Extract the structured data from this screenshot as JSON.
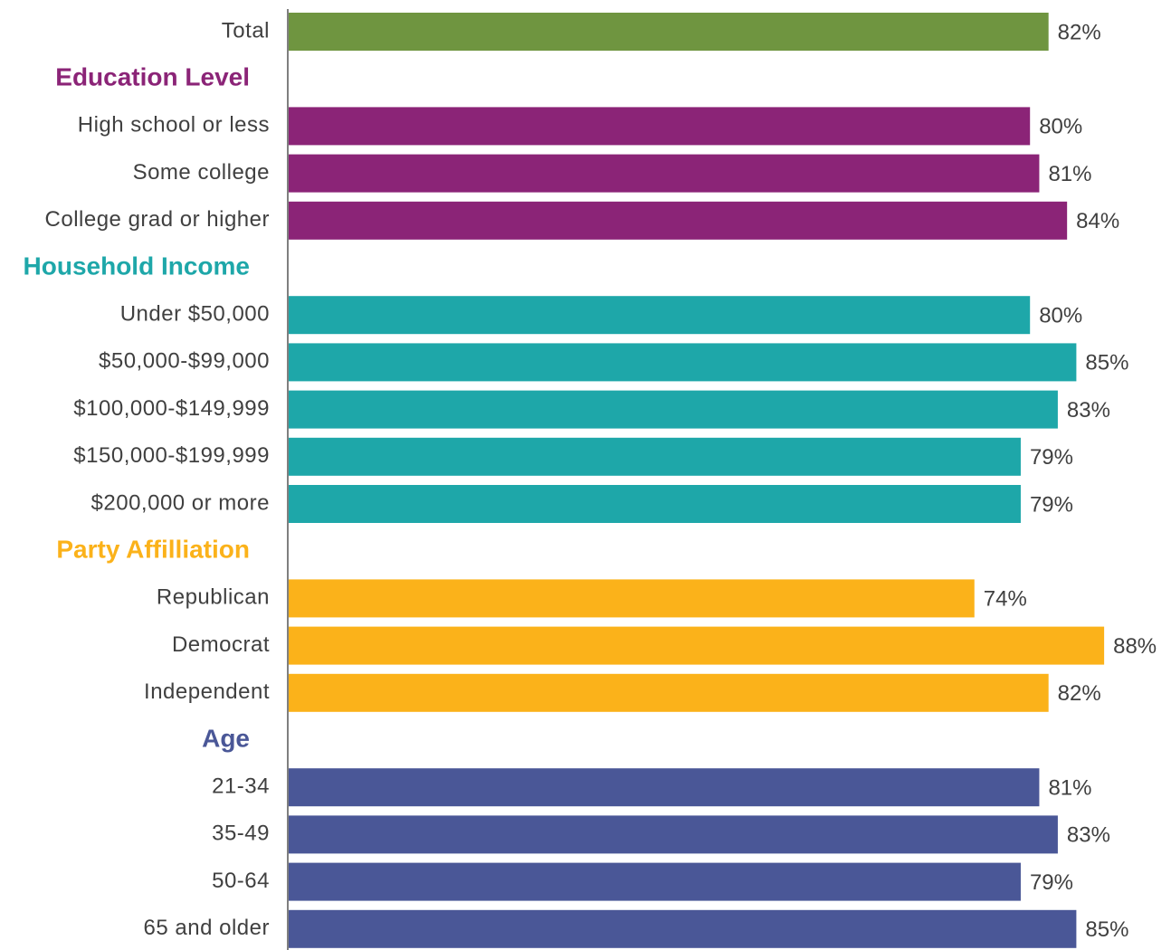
{
  "chart_data": {
    "type": "bar",
    "orientation": "horizontal",
    "total": {
      "label": "Total",
      "value": 82,
      "value_label": "82%",
      "color": "#6f9540"
    },
    "groups": [
      {
        "name": "Education Level",
        "color": "#8b2477",
        "categories": [
          "High school or less",
          "Some college",
          "College grad or higher"
        ],
        "values": [
          80,
          81,
          84
        ],
        "value_labels": [
          "80%",
          "81%",
          "84%"
        ]
      },
      {
        "name": "Household Income",
        "color": "#1ea7a9",
        "categories": [
          "Under $50,000",
          "$50,000-$99,000",
          "$100,000-$149,999",
          "$150,000-$199,999",
          "$200,000 or more"
        ],
        "values": [
          80,
          85,
          83,
          79,
          79
        ],
        "value_labels": [
          "80%",
          "85%",
          "83%",
          "79%",
          "79%"
        ]
      },
      {
        "name": "Party Affilliation",
        "color": "#fbb21a",
        "categories": [
          "Republican",
          "Democrat",
          "Independent"
        ],
        "values": [
          74,
          88,
          82
        ],
        "value_labels": [
          "74%",
          "88%",
          "82%"
        ]
      },
      {
        "name": "Age",
        "color": "#4a5797",
        "categories": [
          "21-34",
          "35-49",
          "50-64",
          "65 and older"
        ],
        "values": [
          81,
          83,
          79,
          85
        ],
        "value_labels": [
          "81%",
          "83%",
          "79%",
          "85%"
        ]
      }
    ]
  }
}
